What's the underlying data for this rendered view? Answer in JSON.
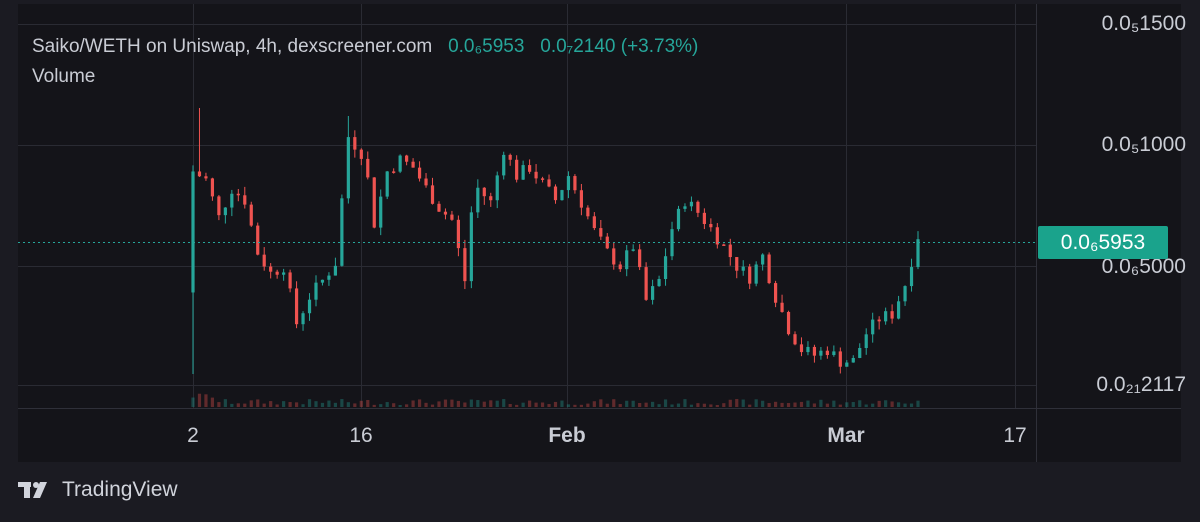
{
  "legend": {
    "title": "Saiko/WETH on Uniswap, 4h, dexscreener.com",
    "price": "0.0₆5953",
    "change": "0.0₇2140 (+3.73%)",
    "volume_label": "Volume"
  },
  "last_price_tag": "0.0₆5953",
  "brand": {
    "name": "TradingView"
  },
  "colors": {
    "up": "#26a69a",
    "down": "#ef5350",
    "tag": "#1aa38c",
    "grid": "#2a2b33"
  },
  "chart_data": {
    "type": "candlestick",
    "title": "Saiko/WETH on Uniswap, 4h, dexscreener.com",
    "y_scale": "log",
    "y_ticks": [
      {
        "label": "0.0₅1500",
        "value": 1.5e-05
      },
      {
        "label": "0.0₅1000",
        "value": 1e-05
      },
      {
        "label": "0.0₆5000",
        "value": 5e-06
      },
      {
        "label": "0.0₂₁2117",
        "value": 2.117e-22
      }
    ],
    "x_ticks": [
      {
        "label": "2",
        "bold": false
      },
      {
        "label": "16",
        "bold": false
      },
      {
        "label": "Feb",
        "bold": true
      },
      {
        "label": "Mar",
        "bold": true
      },
      {
        "label": "17",
        "bold": false
      }
    ],
    "last_price": 5.953e-06,
    "price_path": [
      [
        0,
        8.6e-06
      ],
      [
        2,
        8.2e-06
      ],
      [
        4,
        6.6e-06
      ],
      [
        6,
        7.8e-06
      ],
      [
        8,
        7.3e-06
      ],
      [
        10,
        5.4e-06
      ],
      [
        12,
        4.8e-06
      ],
      [
        14,
        5e-06
      ],
      [
        16,
        3.6e-06
      ],
      [
        18,
        4.2e-06
      ],
      [
        20,
        4.6e-06
      ],
      [
        22,
        5.1e-06
      ],
      [
        24,
        1.05e-05
      ],
      [
        26,
        9.6e-06
      ],
      [
        27,
        8.2e-06
      ],
      [
        28,
        6.4e-06
      ],
      [
        30,
        8.6e-06
      ],
      [
        32,
        9.2e-06
      ],
      [
        34,
        8.8e-06
      ],
      [
        36,
        7.8e-06
      ],
      [
        38,
        7e-06
      ],
      [
        40,
        6.5e-06
      ],
      [
        42,
        4.6e-06
      ],
      [
        43,
        6.8e-06
      ],
      [
        44,
        7.8e-06
      ],
      [
        46,
        7.2e-06
      ],
      [
        48,
        9.8e-06
      ],
      [
        50,
        8.4e-06
      ],
      [
        52,
        8.8e-06
      ],
      [
        54,
        8e-06
      ],
      [
        56,
        7.3e-06
      ],
      [
        58,
        8.4e-06
      ],
      [
        60,
        7.2e-06
      ],
      [
        62,
        6.1e-06
      ],
      [
        64,
        5.4e-06
      ],
      [
        66,
        5e-06
      ],
      [
        68,
        5.6e-06
      ],
      [
        70,
        4.1e-06
      ],
      [
        72,
        4.6e-06
      ],
      [
        74,
        6.2e-06
      ],
      [
        76,
        7.3e-06
      ],
      [
        78,
        6.8e-06
      ],
      [
        80,
        6.2e-06
      ],
      [
        82,
        5.6e-06
      ],
      [
        84,
        5e-06
      ],
      [
        86,
        4.7e-06
      ],
      [
        88,
        5.3e-06
      ],
      [
        90,
        4.2e-06
      ],
      [
        92,
        3.5e-06
      ],
      [
        94,
        3.1e-06
      ],
      [
        96,
        3e-06
      ],
      [
        98,
        3.1e-06
      ],
      [
        100,
        2.9e-06
      ],
      [
        102,
        2.9e-06
      ],
      [
        104,
        3.4e-06
      ],
      [
        106,
        3.7e-06
      ],
      [
        108,
        3.8e-06
      ],
      [
        110,
        4.5e-06
      ],
      [
        112,
        5.953e-06
      ]
    ]
  }
}
